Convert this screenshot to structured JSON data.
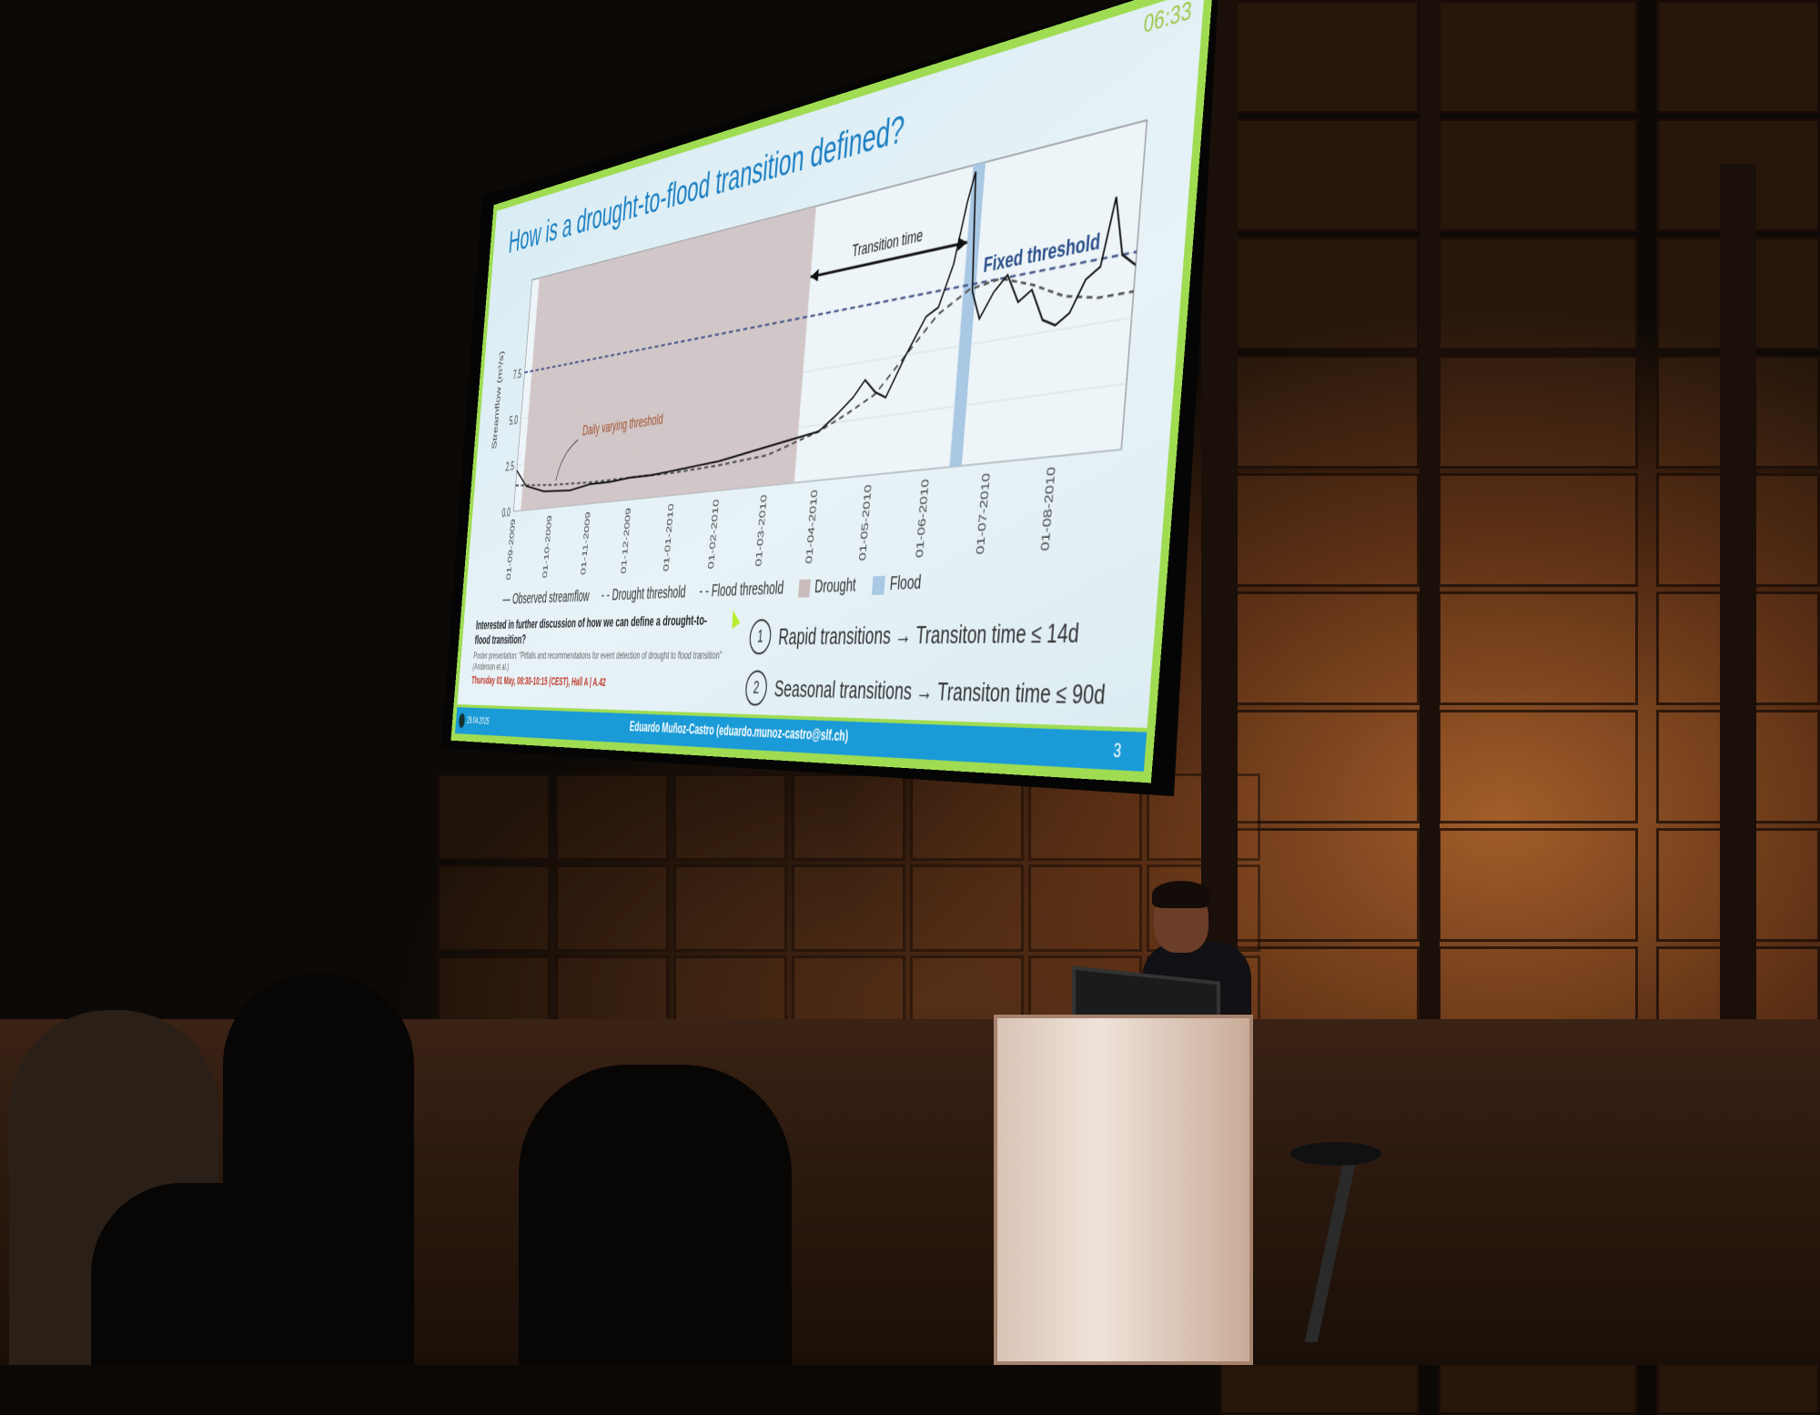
{
  "slide": {
    "timer": "06:33",
    "title": "How is a drought-to-flood transition defined?",
    "annotations": {
      "transition_time": "Transition time",
      "fixed_threshold": "Fixed threshold",
      "daily_varying_threshold": "Daily varying threshold"
    },
    "legend": [
      {
        "label": "Observed streamflow",
        "style": "solid",
        "color": "#222222"
      },
      {
        "label": "Drought threshold",
        "style": "dashed",
        "color": "#555555"
      },
      {
        "label": "Flood threshold",
        "style": "dashed",
        "color": "#4a5a8a"
      },
      {
        "label": "Drought",
        "style": "fill",
        "color": "#cbbcbc"
      },
      {
        "label": "Flood",
        "style": "fill",
        "color": "#a9c8e4"
      }
    ],
    "discussion": {
      "question": "Interested in further discussion of how we can define a drought-to-flood transition?",
      "poster": "Poster presentation: \"Pitfalls and recommendations for event detection of drought to flood transition\" (Anderson et al.)",
      "when": "Thursday 01 May, 08:30-10:15 (CEST), Hall A | A.42"
    },
    "items": [
      {
        "num": "1",
        "text": "Rapid transitions → Transiton time ≤ 14d"
      },
      {
        "num": "2",
        "text": "Seasonal transitions → Transiton time ≤ 90d"
      }
    ],
    "footer": {
      "date": "29.04.2025",
      "author": "Eduardo Muñoz-Castro (eduardo.munoz-castro@slf.ch)",
      "page": "3"
    },
    "accent_color": "#1a9ad6",
    "border_color": "#9fdc52"
  },
  "chart_data": {
    "type": "line",
    "ylabel": "Streamflow (m³/s)",
    "yticks": [
      "0.0",
      "2.5",
      "5.0",
      "7.5"
    ],
    "ylim": [
      0,
      12.5
    ],
    "xticks": [
      "01-09-2009",
      "01-10-2009",
      "01-11-2009",
      "01-12-2009",
      "01-01-2010",
      "01-02-2010",
      "01-03-2010",
      "01-04-2010",
      "01-05-2010",
      "01-06-2010",
      "01-07-2010",
      "01-08-2010"
    ],
    "xlim_months": [
      0,
      12
    ],
    "grid": true,
    "fixed_threshold": 7.5,
    "drought_period": [
      0.2,
      6.6
    ],
    "flood_period": [
      9.4,
      9.6
    ],
    "transition_arrow": [
      6.6,
      9.4
    ],
    "series": [
      {
        "name": "Observed streamflow",
        "x": [
          0,
          0.3,
          0.8,
          1.5,
          2,
          2.5,
          3,
          3.5,
          4,
          4.5,
          5,
          5.5,
          6,
          6.5,
          7,
          7.3,
          7.6,
          7.8,
          8,
          8.2,
          8.5,
          8.8,
          9,
          9.2,
          9.35,
          9.45,
          9.55,
          9.7,
          9.9,
          10.1,
          10.3,
          10.5,
          10.7,
          10.9,
          11.1,
          11.3,
          11.5,
          11.65,
          11.8,
          12
        ],
        "values": [
          2.2,
          1.3,
          0.9,
          0.8,
          1.0,
          1.0,
          1.1,
          1.1,
          1.2,
          1.3,
          1.4,
          1.6,
          1.8,
          2.0,
          2.2,
          2.8,
          3.5,
          4.2,
          3.6,
          3.3,
          5.0,
          6.5,
          6.8,
          8.5,
          11.0,
          12.2,
          7.2,
          6.0,
          7.0,
          7.6,
          6.4,
          6.8,
          5.5,
          5.2,
          5.6,
          6.8,
          7.2,
          9.8,
          7.5,
          7.0
        ]
      },
      {
        "name": "Drought threshold",
        "x": [
          0,
          1,
          2,
          3,
          4,
          5,
          6,
          6.5,
          7,
          7.5,
          8,
          8.5,
          9,
          9.5,
          10,
          10.5,
          11,
          11.5,
          12
        ],
        "values": [
          1.4,
          1.2,
          1.1,
          1.1,
          1.1,
          1.2,
          1.4,
          1.8,
          2.2,
          2.8,
          3.5,
          5.0,
          6.5,
          7.3,
          7.5,
          7.0,
          6.3,
          6.0,
          6.0
        ]
      }
    ]
  }
}
